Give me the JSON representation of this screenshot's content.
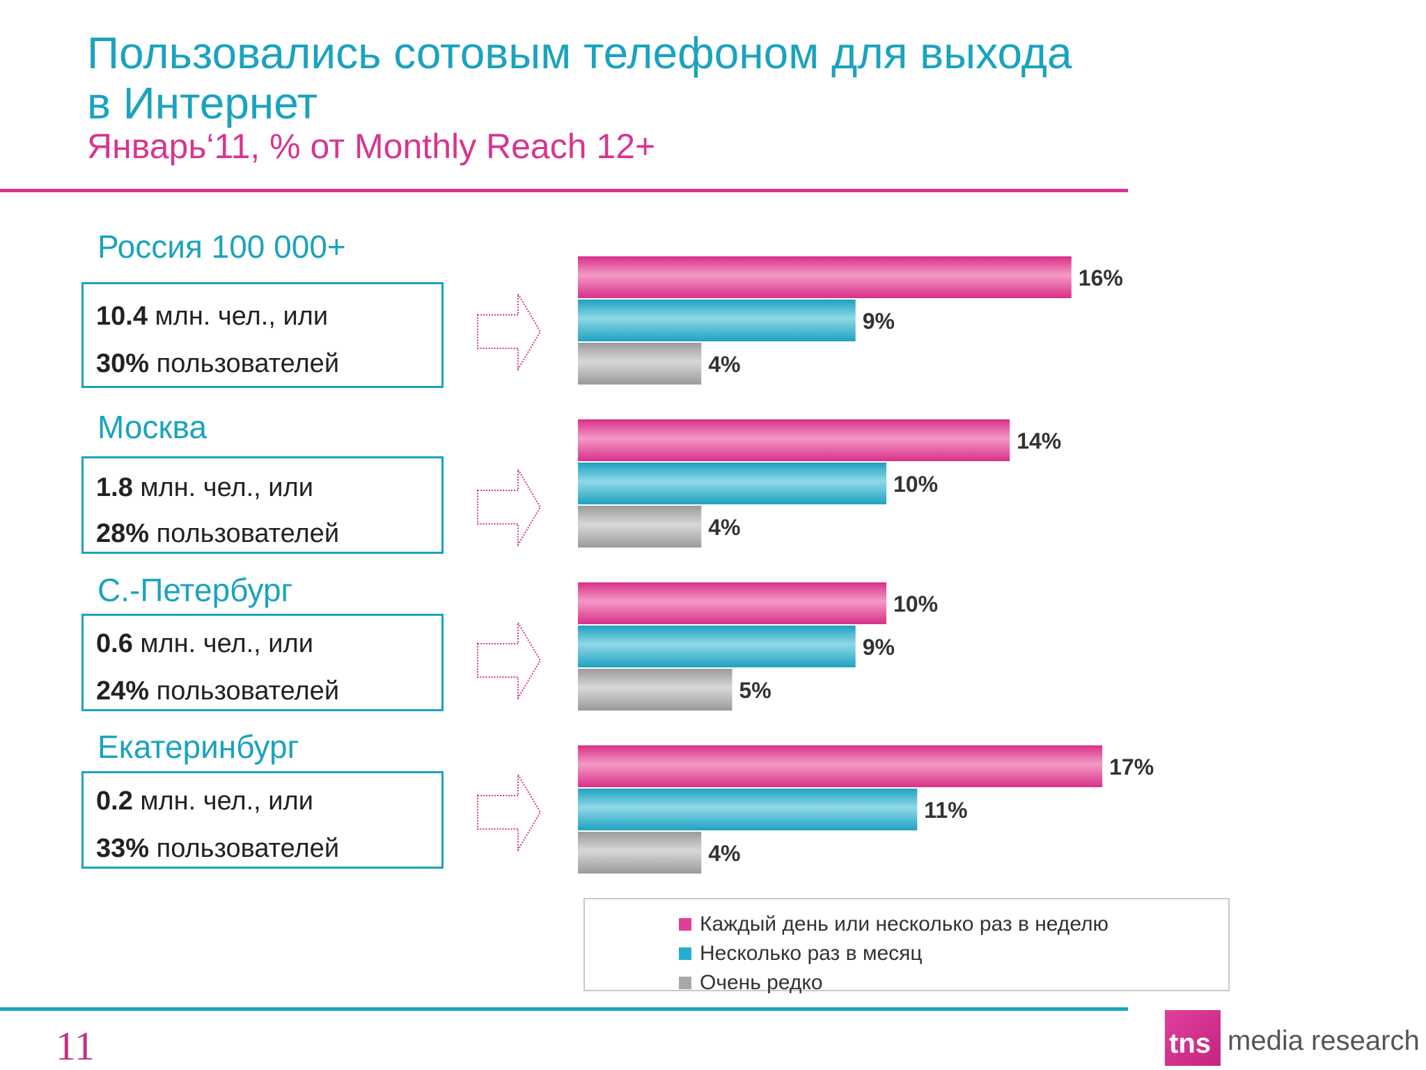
{
  "header": {
    "title_line1": "Пользовались сотовым телефоном для выхода",
    "title_line2": "в Интернет",
    "subtitle": "Январь‘11, % от Monthly Reach 12+"
  },
  "regions": [
    {
      "name": "Россия 100 000+",
      "users_value": "10.4",
      "users_unit": " млн. чел., или",
      "share_value": "30%",
      "share_text": " пользователей"
    },
    {
      "name": "Москва",
      "users_value": "1.8",
      "users_unit": " млн. чел., или",
      "share_value": "28%",
      "share_text": " пользователей"
    },
    {
      "name": "С.-Петербург",
      "users_value": "0.6",
      "users_unit": " млн. чел., или",
      "share_value": "24%",
      "share_text": " пользователей"
    },
    {
      "name": "Екатеринбург",
      "users_value": "0.2",
      "users_unit": " млн. чел., или",
      "share_value": "33%",
      "share_text": " пользователей"
    }
  ],
  "chart_data": {
    "type": "bar",
    "orientation": "horizontal",
    "categories": [
      "Россия 100 000+",
      "Москва",
      "С.-Петербург",
      "Екатеринбург"
    ],
    "series": [
      {
        "name": "Каждый день или несколько раз в неделю",
        "values": [
          16,
          14,
          10,
          17
        ],
        "color": "#e13f95"
      },
      {
        "name": "Несколько раз в месяц",
        "values": [
          9,
          10,
          9,
          11
        ],
        "color": "#27aecb"
      },
      {
        "name": "Очень редко",
        "values": [
          4,
          4,
          5,
          4
        ],
        "color": "#a8a8a8"
      }
    ],
    "value_suffix": "%",
    "legend_position": "bottom-right",
    "grid": false
  },
  "legend": {
    "items": [
      "Каждый день или несколько раз в неделю",
      "Несколько раз в месяц",
      "Очень редко"
    ],
    "colors": [
      "#e13f95",
      "#27aecb",
      "#a8a8a8"
    ]
  },
  "footer": {
    "page_number": "11",
    "logo_mark": "tns",
    "logo_text": "media research"
  }
}
